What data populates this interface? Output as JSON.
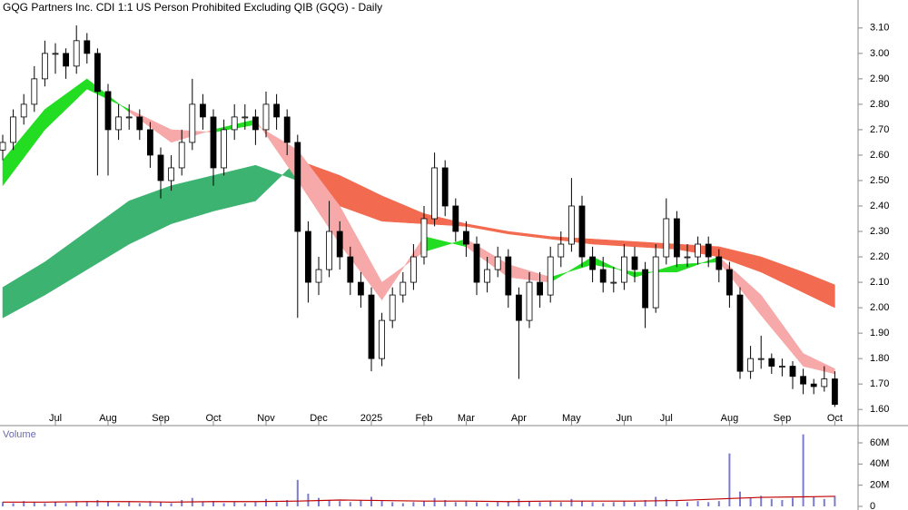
{
  "chart_data": [
    {
      "type": "candlestick",
      "title": "GQG Partners Inc. CDI 1:1 US Person Prohibited Excluding QIB (GQG) - Daily",
      "categories": [
        null,
        null,
        null,
        null,
        null,
        "Jul",
        null,
        null,
        null,
        null,
        "Aug",
        null,
        null,
        null,
        null,
        "Sep",
        null,
        null,
        null,
        null,
        "Oct",
        null,
        null,
        null,
        null,
        "Nov",
        null,
        null,
        null,
        null,
        "Dec",
        null,
        null,
        null,
        null,
        "2025",
        null,
        null,
        null,
        null,
        "Feb",
        null,
        null,
        null,
        "Mar",
        null,
        null,
        null,
        null,
        "Apr",
        null,
        null,
        null,
        null,
        "May",
        null,
        null,
        null,
        null,
        "Jun",
        null,
        null,
        null,
        "Jul",
        null,
        null,
        null,
        null,
        null,
        "Aug",
        null,
        null,
        null,
        null,
        "Sep",
        null,
        null,
        null,
        null,
        "Oct"
      ],
      "ohlc": [
        [
          2.62,
          2.68,
          2.58,
          2.65
        ],
        [
          2.65,
          2.78,
          2.62,
          2.75
        ],
        [
          2.75,
          2.84,
          2.72,
          2.8
        ],
        [
          2.8,
          2.95,
          2.77,
          2.9
        ],
        [
          2.9,
          3.05,
          2.87,
          3.0
        ],
        [
          3.0,
          3.04,
          2.92,
          3.0
        ],
        [
          3.0,
          3.02,
          2.9,
          2.95
        ],
        [
          2.95,
          3.11,
          2.92,
          3.05
        ],
        [
          3.05,
          3.08,
          2.96,
          3.0
        ],
        [
          3.0,
          3.02,
          2.52,
          2.85
        ],
        [
          2.85,
          2.88,
          2.52,
          2.7
        ],
        [
          2.7,
          2.8,
          2.66,
          2.75
        ],
        [
          2.75,
          2.8,
          2.7,
          2.75
        ],
        [
          2.75,
          2.78,
          2.66,
          2.7
        ],
        [
          2.7,
          2.73,
          2.55,
          2.6
        ],
        [
          2.6,
          2.63,
          2.43,
          2.5
        ],
        [
          2.5,
          2.6,
          2.46,
          2.55
        ],
        [
          2.55,
          2.7,
          2.52,
          2.65
        ],
        [
          2.65,
          2.9,
          2.62,
          2.8
        ],
        [
          2.8,
          2.84,
          2.7,
          2.75
        ],
        [
          2.75,
          2.78,
          2.48,
          2.55
        ],
        [
          2.55,
          2.74,
          2.52,
          2.7
        ],
        [
          2.7,
          2.8,
          2.66,
          2.75
        ],
        [
          2.75,
          2.8,
          2.7,
          2.75
        ],
        [
          2.75,
          2.78,
          2.64,
          2.7
        ],
        [
          2.7,
          2.85,
          2.67,
          2.8
        ],
        [
          2.8,
          2.84,
          2.7,
          2.75
        ],
        [
          2.75,
          2.78,
          2.6,
          2.65
        ],
        [
          2.65,
          2.68,
          1.96,
          2.3
        ],
        [
          2.3,
          2.34,
          2.02,
          2.1
        ],
        [
          2.1,
          2.2,
          2.05,
          2.15
        ],
        [
          2.15,
          2.42,
          2.12,
          2.3
        ],
        [
          2.3,
          2.34,
          2.15,
          2.2
        ],
        [
          2.2,
          2.24,
          2.05,
          2.1
        ],
        [
          2.1,
          2.14,
          2.0,
          2.05
        ],
        [
          2.05,
          2.08,
          1.75,
          1.8
        ],
        [
          1.8,
          1.98,
          1.77,
          1.95
        ],
        [
          1.95,
          2.08,
          1.92,
          2.05
        ],
        [
          2.05,
          2.14,
          2.02,
          2.1
        ],
        [
          2.1,
          2.25,
          2.07,
          2.2
        ],
        [
          2.2,
          2.4,
          2.17,
          2.35
        ],
        [
          2.35,
          2.61,
          2.32,
          2.55
        ],
        [
          2.55,
          2.58,
          2.36,
          2.4
        ],
        [
          2.4,
          2.43,
          2.26,
          2.3
        ],
        [
          2.3,
          2.34,
          2.2,
          2.25
        ],
        [
          2.25,
          2.28,
          2.05,
          2.1
        ],
        [
          2.1,
          2.2,
          2.06,
          2.15
        ],
        [
          2.15,
          2.24,
          2.12,
          2.2
        ],
        [
          2.2,
          2.23,
          2.0,
          2.05
        ],
        [
          2.05,
          2.08,
          1.72,
          1.95
        ],
        [
          1.95,
          2.14,
          1.92,
          2.1
        ],
        [
          2.1,
          2.14,
          2.0,
          2.05
        ],
        [
          2.05,
          2.24,
          2.02,
          2.2
        ],
        [
          2.2,
          2.3,
          2.16,
          2.25
        ],
        [
          2.25,
          2.51,
          2.22,
          2.4
        ],
        [
          2.4,
          2.44,
          2.16,
          2.2
        ],
        [
          2.2,
          2.24,
          2.1,
          2.15
        ],
        [
          2.15,
          2.2,
          2.06,
          2.1
        ],
        [
          2.1,
          2.16,
          2.06,
          2.1
        ],
        [
          2.1,
          2.25,
          2.07,
          2.2
        ],
        [
          2.2,
          2.24,
          2.1,
          2.15
        ],
        [
          2.15,
          2.18,
          1.92,
          2.0
        ],
        [
          2.0,
          2.25,
          1.98,
          2.2
        ],
        [
          2.2,
          2.43,
          2.17,
          2.35
        ],
        [
          2.35,
          2.38,
          2.16,
          2.2
        ],
        [
          2.2,
          2.25,
          2.16,
          2.2
        ],
        [
          2.2,
          2.28,
          2.17,
          2.25
        ],
        [
          2.25,
          2.28,
          2.16,
          2.2
        ],
        [
          2.2,
          2.23,
          2.1,
          2.15
        ],
        [
          2.15,
          2.18,
          2.0,
          2.05
        ],
        [
          2.05,
          2.08,
          1.72,
          1.75
        ],
        [
          1.75,
          1.85,
          1.72,
          1.8
        ],
        [
          1.8,
          1.89,
          1.76,
          1.8
        ],
        [
          1.8,
          1.82,
          1.74,
          1.77
        ],
        [
          1.77,
          1.8,
          1.73,
          1.77
        ],
        [
          1.77,
          1.79,
          1.68,
          1.73
        ],
        [
          1.73,
          1.76,
          1.66,
          1.7
        ],
        [
          1.7,
          1.72,
          1.66,
          1.69
        ],
        [
          1.69,
          1.77,
          1.67,
          1.72
        ],
        [
          1.72,
          1.75,
          1.61,
          1.62
        ]
      ],
      "up_color": "#ffffff",
      "down_color": "#000000",
      "ribbons": [
        {
          "x": [
            0,
            4,
            8,
            12,
            16,
            20,
            24,
            28,
            32,
            36,
            40,
            44,
            48,
            52,
            56,
            60,
            64,
            68,
            72,
            76,
            79
          ],
          "fast": [
            2.08,
            2.18,
            2.3,
            2.42,
            2.48,
            2.52,
            2.56,
            2.5,
            2.4,
            2.34,
            2.33,
            2.32,
            2.29,
            2.27,
            2.25,
            2.24,
            2.23,
            2.2,
            2.14,
            2.06,
            2.0
          ],
          "slow": [
            1.96,
            2.05,
            2.15,
            2.25,
            2.33,
            2.38,
            2.42,
            2.58,
            2.52,
            2.44,
            2.37,
            2.33,
            2.3,
            2.28,
            2.27,
            2.26,
            2.25,
            2.24,
            2.2,
            2.14,
            2.09
          ],
          "up_color": "#3cb371",
          "down_color": "#f26a4f"
        },
        {
          "x": [
            0,
            4,
            8,
            12,
            16,
            20,
            24,
            28,
            32,
            36,
            40,
            44,
            48,
            52,
            56,
            60,
            64,
            68,
            72,
            76,
            79
          ],
          "fast": [
            2.58,
            2.78,
            2.9,
            2.77,
            2.65,
            2.7,
            2.74,
            2.5,
            2.25,
            2.03,
            2.28,
            2.24,
            2.12,
            2.1,
            2.2,
            2.12,
            2.17,
            2.18,
            1.97,
            1.77,
            1.74
          ],
          "slow": [
            2.48,
            2.7,
            2.86,
            2.78,
            2.7,
            2.69,
            2.72,
            2.62,
            2.4,
            2.1,
            2.22,
            2.27,
            2.17,
            2.12,
            2.17,
            2.14,
            2.14,
            2.2,
            2.05,
            1.82,
            1.76
          ],
          "up_color": "#22dd22",
          "down_color": "#f7a8a8"
        }
      ],
      "ylim": [
        1.54,
        3.21
      ],
      "yticks": [
        {
          "value": 1.6,
          "label": "1.60"
        },
        {
          "value": 1.7,
          "label": "1.70"
        },
        {
          "value": 1.8,
          "label": "1.80"
        },
        {
          "value": 1.9,
          "label": "1.90"
        },
        {
          "value": 2.0,
          "label": "2.00"
        },
        {
          "value": 2.1,
          "label": "2.10"
        },
        {
          "value": 2.2,
          "label": "2.20"
        },
        {
          "value": 2.3,
          "label": "2.30"
        },
        {
          "value": 2.4,
          "label": "2.40"
        },
        {
          "value": 2.5,
          "label": "2.50"
        },
        {
          "value": 2.6,
          "label": "2.60"
        },
        {
          "value": 2.7,
          "label": "2.70"
        },
        {
          "value": 2.8,
          "label": "2.80"
        },
        {
          "value": 2.9,
          "label": "2.90"
        },
        {
          "value": 3.0,
          "label": "3.00"
        },
        {
          "value": 3.1,
          "label": "3.10"
        }
      ]
    },
    {
      "type": "bar",
      "title": "Volume",
      "values": [
        4000000,
        3000000,
        5000000,
        4000000,
        3000000,
        4000000,
        3000000,
        5000000,
        4000000,
        6000000,
        5000000,
        3000000,
        4000000,
        3000000,
        5000000,
        4000000,
        3000000,
        6000000,
        8000000,
        4000000,
        5000000,
        3000000,
        4000000,
        3000000,
        4000000,
        7000000,
        4000000,
        6000000,
        25000000,
        12000000,
        8000000,
        6000000,
        5000000,
        4000000,
        6000000,
        9000000,
        5000000,
        4000000,
        3000000,
        4000000,
        5000000,
        8000000,
        6000000,
        4000000,
        5000000,
        4000000,
        3000000,
        4000000,
        5000000,
        7000000,
        5000000,
        4000000,
        5000000,
        4000000,
        7000000,
        5000000,
        4000000,
        3000000,
        4000000,
        5000000,
        4000000,
        6000000,
        9000000,
        7000000,
        5000000,
        4000000,
        5000000,
        4000000,
        5000000,
        50000000,
        14000000,
        8000000,
        10000000,
        7000000,
        6000000,
        8000000,
        68000000,
        9000000,
        7000000,
        10000000
      ],
      "color": "#7b7bd0",
      "ma": {
        "x": [
          0,
          4,
          8,
          12,
          16,
          20,
          24,
          28,
          32,
          36,
          40,
          44,
          48,
          52,
          56,
          60,
          64,
          68,
          72,
          76,
          79
        ],
        "values": [
          4000000,
          4000000,
          4500000,
          4500000,
          4000000,
          4500000,
          4500000,
          5000000,
          6000000,
          5500000,
          5000000,
          5000000,
          4500000,
          5000000,
          5000000,
          5000000,
          5500000,
          7000000,
          8500000,
          9000000,
          9500000
        ],
        "color": "#c00000"
      },
      "ylim": [
        0,
        72000000
      ],
      "yticks": [
        0,
        {
          "value": 20000000,
          "label": "20M"
        },
        {
          "value": 40000000,
          "label": "40M"
        },
        {
          "value": 60000000,
          "label": "60M"
        }
      ]
    }
  ]
}
